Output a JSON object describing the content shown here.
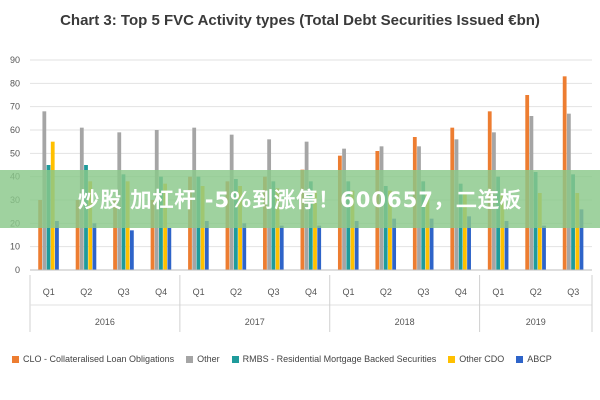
{
  "chart_data": {
    "type": "bar",
    "title": "Chart 3: Top 5 FVC Activity types (Total Debt Securities Issued €bn)",
    "xlabel": "",
    "ylabel": "",
    "ylim": [
      0,
      90
    ],
    "yticks": [
      "0",
      "10",
      "20",
      "30",
      "40",
      "50",
      "60",
      "70",
      "80",
      "90"
    ],
    "grid": true,
    "legend_position": "bottom",
    "categories": [
      "Q1",
      "Q2",
      "Q3",
      "Q4",
      "Q1",
      "Q2",
      "Q3",
      "Q4",
      "Q1",
      "Q2",
      "Q3",
      "Q4",
      "Q1",
      "Q2",
      "Q3"
    ],
    "years": [
      {
        "label": "2016",
        "count": 4
      },
      {
        "label": "2017",
        "count": 4
      },
      {
        "label": "2018",
        "count": 4
      },
      {
        "label": "2019",
        "count": 3
      }
    ],
    "series": [
      {
        "name": "CLO - Collateralised Loan Obligations",
        "color": "#ed7d31",
        "values": [
          30,
          30,
          30,
          30,
          40,
          38,
          40,
          43,
          49,
          51,
          57,
          61,
          68,
          75,
          83
        ]
      },
      {
        "name": "Other",
        "color": "#a5a5a5",
        "values": [
          68,
          61,
          59,
          60,
          61,
          58,
          56,
          55,
          52,
          53,
          53,
          56,
          59,
          66,
          67
        ]
      },
      {
        "name": "RMBS - Residential Mortgage Backed Securities",
        "color": "#1f9b9b",
        "values": [
          45,
          45,
          41,
          40,
          40,
          39,
          38,
          38,
          38,
          36,
          38,
          37,
          40,
          42,
          41
        ]
      },
      {
        "name": "Other CDO",
        "color": "#ffc000",
        "values": [
          55,
          38,
          38,
          37,
          36,
          36,
          35,
          34,
          34,
          34,
          33,
          33,
          33,
          33,
          33
        ]
      },
      {
        "name": "ABCP",
        "color": "#2e64c9",
        "values": [
          21,
          20,
          17,
          18,
          21,
          20,
          19,
          19,
          21,
          22,
          22,
          23,
          21,
          19,
          26
        ]
      }
    ]
  },
  "overlay": {
    "banner_text": "炒股 加杠杆 -5%到涨停！600657，二连板"
  }
}
